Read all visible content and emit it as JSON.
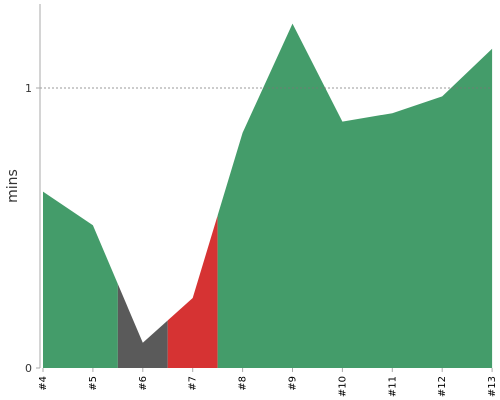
{
  "chart_data": {
    "type": "area",
    "ylabel": "mins",
    "categories": [
      "#4",
      "#5",
      "#6",
      "#7",
      "#8",
      "#9",
      "#10",
      "#11",
      "#12",
      "#13"
    ],
    "values": [
      0.63,
      0.51,
      0.09,
      0.25,
      0.84,
      1.23,
      0.88,
      0.91,
      0.97,
      1.14
    ],
    "ylim": [
      0,
      1.3
    ],
    "yticks": [
      {
        "value": 0,
        "label": "0"
      },
      {
        "value": 1,
        "label": "1"
      }
    ],
    "reference_line": {
      "value": 1,
      "style": "dashed"
    },
    "segments": [
      {
        "from": 0,
        "to": 1.5,
        "color": "#449c6a"
      },
      {
        "from": 1.5,
        "to": 2.5,
        "color": "#5a5a5a"
      },
      {
        "from": 2.5,
        "to": 3.5,
        "color": "#d63333"
      },
      {
        "from": 3.5,
        "to": 9,
        "color": "#449c6a"
      }
    ],
    "grid": false
  }
}
